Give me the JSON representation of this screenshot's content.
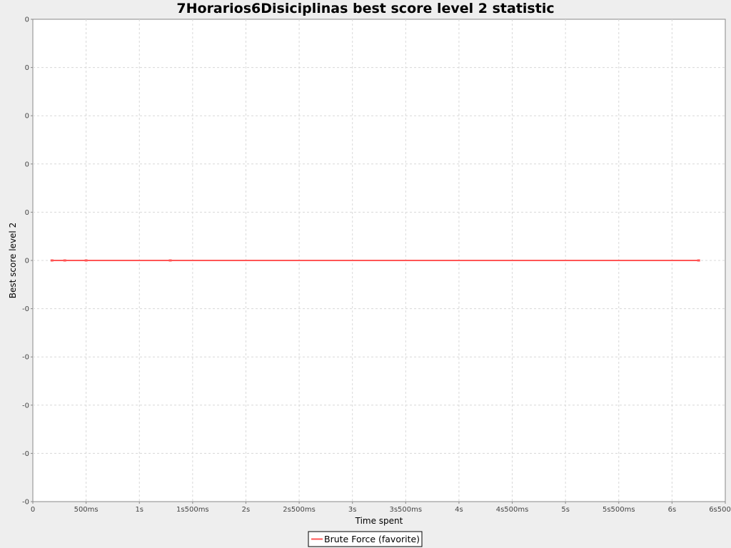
{
  "chart_data": {
    "type": "line",
    "title": "7Horarios6Disiciplinas best score level 2 statistic",
    "xlabel": "Time spent",
    "ylabel": "Best score level 2",
    "x_unit": "ms",
    "xlim": [
      0,
      6500
    ],
    "x_ticks": [
      0,
      500,
      1000,
      1500,
      2000,
      2500,
      3000,
      3500,
      4000,
      4500,
      5000,
      5500,
      6000,
      6500
    ],
    "x_tick_labels": [
      "0",
      "500ms",
      "1s",
      "1s500ms",
      "2s",
      "2s500ms",
      "3s",
      "3s500ms",
      "4s",
      "4s500ms",
      "5s",
      "5s500ms",
      "6s",
      "6s500ms"
    ],
    "y_tick_labels": [
      "0",
      "0",
      "0",
      "0",
      "0",
      "0",
      "-0",
      "-0",
      "-0",
      "-0",
      "-0"
    ],
    "ylim": [
      -5,
      5
    ],
    "grid": true,
    "legend_position": "bottom",
    "series": [
      {
        "name": "Brute Force (favorite)",
        "color": "#ff5555",
        "x": [
          180,
          300,
          500,
          1290,
          6250
        ],
        "y": [
          0,
          0,
          0,
          0,
          0
        ]
      }
    ]
  }
}
